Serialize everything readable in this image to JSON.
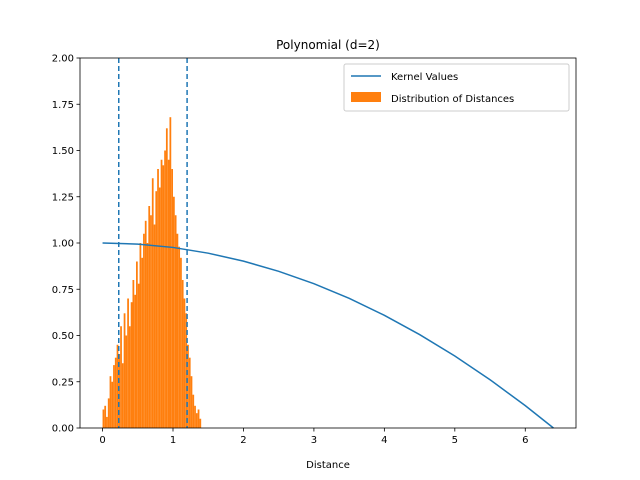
{
  "chart_data": {
    "type": "bar",
    "title": "Polynomial (d=2)",
    "xlabel": "Distance",
    "ylabel": "",
    "xlim": [
      -0.32,
      6.72
    ],
    "ylim": [
      0,
      2.0
    ],
    "x_ticks": [
      0,
      1,
      2,
      3,
      4,
      5,
      6
    ],
    "x_tick_labels": [
      "0",
      "1",
      "2",
      "3",
      "4",
      "5",
      "6"
    ],
    "y_ticks": [
      0,
      0.25,
      0.5,
      0.75,
      1.0,
      1.25,
      1.5,
      1.75,
      2.0
    ],
    "y_tick_labels": [
      "0.00",
      "0.25",
      "0.50",
      "0.75",
      "1.00",
      "1.25",
      "1.50",
      "1.75",
      "2.00"
    ],
    "grid": false,
    "legend_position": "top-right",
    "series": [
      {
        "name": "Kernel Values",
        "type": "line",
        "color": "#1f77b4",
        "x": [
          0,
          0.5,
          1.0,
          1.5,
          2.0,
          2.5,
          3.0,
          3.5,
          4.0,
          4.5,
          5.0,
          5.5,
          6.0,
          6.4
        ],
        "y": [
          1.0,
          0.994,
          0.976,
          0.945,
          0.902,
          0.847,
          0.78,
          0.701,
          0.609,
          0.505,
          0.389,
          0.261,
          0.121,
          0.0
        ]
      },
      {
        "name": "Distribution of Distances",
        "type": "histogram",
        "color": "#ff7f0e",
        "bin_width": 0.025,
        "x": [
          0.0125,
          0.0375,
          0.0625,
          0.0875,
          0.1125,
          0.1375,
          0.1625,
          0.1875,
          0.2125,
          0.2375,
          0.2625,
          0.2875,
          0.3125,
          0.3375,
          0.3625,
          0.3875,
          0.4125,
          0.4375,
          0.4625,
          0.4875,
          0.5125,
          0.5375,
          0.5625,
          0.5875,
          0.6125,
          0.6375,
          0.6625,
          0.6875,
          0.7125,
          0.7375,
          0.7625,
          0.7875,
          0.8125,
          0.8375,
          0.8625,
          0.8875,
          0.9125,
          0.9375,
          0.9625,
          0.9875,
          1.0125,
          1.0375,
          1.0625,
          1.0875,
          1.1125,
          1.1375,
          1.1625,
          1.1875,
          1.2125,
          1.2375,
          1.2625,
          1.2875,
          1.3125,
          1.3375,
          1.3625,
          1.3875
        ],
        "values": [
          0.1,
          0.12,
          0.06,
          0.16,
          0.28,
          0.25,
          0.34,
          0.38,
          0.45,
          0.4,
          0.55,
          0.35,
          0.62,
          0.5,
          0.7,
          0.55,
          0.68,
          0.8,
          0.72,
          0.9,
          0.78,
          1.0,
          0.92,
          1.05,
          1.12,
          1.0,
          1.2,
          1.15,
          1.35,
          1.1,
          1.28,
          1.4,
          1.3,
          1.45,
          1.42,
          1.5,
          1.62,
          1.45,
          1.68,
          1.4,
          1.25,
          1.15,
          1.05,
          0.98,
          0.92,
          0.8,
          0.7,
          0.62,
          0.45,
          0.38,
          0.28,
          0.18,
          0.12,
          0.08,
          0.1,
          0.05
        ]
      }
    ],
    "reference_lines": [
      {
        "orientation": "vertical",
        "x": 0.23,
        "style": "dashed",
        "color": "#1f77b4"
      },
      {
        "orientation": "vertical",
        "x": 1.2,
        "style": "dashed",
        "color": "#1f77b4"
      }
    ]
  }
}
